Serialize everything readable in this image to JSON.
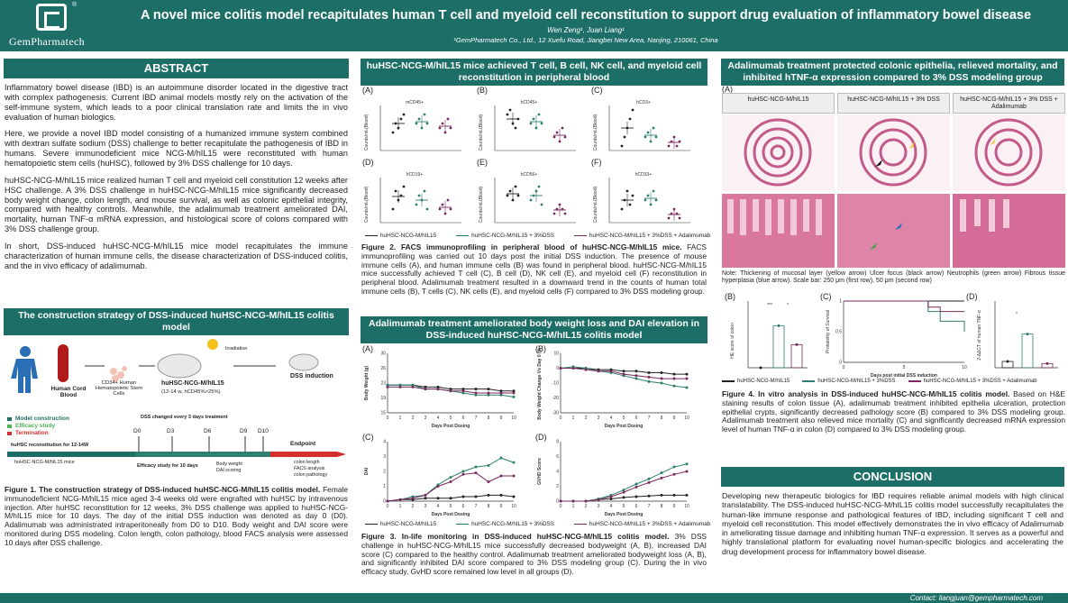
{
  "header": {
    "logo": "GemPharmatech",
    "reg": "®",
    "title": "A novel mice colitis model recapitulates human T cell and myeloid cell reconstitution to support drug evaluation of inflammatory bowel disease",
    "authors": "Wen Zeng¹, Juan Liang¹",
    "affil": "¹GemPharmatech Co., Ltd., 12 Xuefu Road, Jiangbei New Area, Nanjing, 210061, China"
  },
  "abstract": {
    "heading": "ABSTRACT",
    "p1": "Inflammatory bowel disease (IBD) is an autoimmune disorder located in the digestive tract with complex pathogenesis. Current IBD animal models mostly rely on the activation of the self-immune system, which leads to a poor clinical translation rate and limits the in vivo evaluation of human biologics.",
    "p2": "Here, we provide a novel IBD model consisting of a humanized immune system combined with dextran sulfate sodium (DSS) challenge to better recapitulate the pathogenesis of IBD in humans. Severe immunodeficient mice NCG-M/hIL15 were reconstituted with human hematopoietic stem cells (huHSC), followed by 3% DSS challenge for 10 days.",
    "p3": "huHSC-NCG-M/hIL15 mice realized human T cell and myeloid cell constitution 12 weeks after HSC challenge. A 3% DSS challenge in huHSC-NCG-M/hIL15 mice significantly decreased body weight change, colon length, and mouse survival, as well as colonic epithelial integrity, compared with healthy controls. Meanwhile, the adalimumab treatment ameliorated DAI, mortality, human TNF-α mRNA expression, and histological score of colons compared with 3% DSS challenge group.",
    "p4": "In short, DSS-induced huHSC-NCG-M/hIL15 mice model recapitulates the immune characterization of human immune cells, the disease characterization of DSS-induced colitis, and the in vivo efficacy of adalimumab."
  },
  "strategy": {
    "heading": "The construction strategy of DSS-induced huHSC-NCG-M/hIL15 colitis model",
    "human": "Human Cord Blood",
    "cd34": "CD34+ Human Hematopoietic Stem Cells",
    "irradiation": "Irradiation",
    "mouse": "huHSC-NCG-M/hIL15",
    "mouse_sub": "(12-14 w, hCD45%>25%)",
    "dss": "DSS induction",
    "legend": [
      "Model construction",
      "Efficacy study",
      "Termination"
    ],
    "dss_change": "DSS changed every 3 days treatment",
    "days": [
      "D0",
      "D3",
      "D6",
      "D9",
      "D10"
    ],
    "endpoint": "Endpoint",
    "recon": "huHSC reconstitution for 12-14W",
    "mice": "huHSC-NCG-M/hIL15 mice",
    "efficacy": "Efficacy study for 10 days",
    "measures": [
      "Body weight",
      "DAI scoring"
    ],
    "endpoints": [
      "colon length",
      "FACS analysis",
      "colon pathology"
    ]
  },
  "fig1": {
    "title": "Figure 1. The construction strategy of DSS-induced huHSC-NCG-M/hIL15 colitis model.",
    "text": "Female immunodeficient NCG-M/hIL15 mice aged 3-4 weeks old were engrafted with huHSC by intravenous injection. After huHSC reconstitution for 12 weeks, 3% DSS challenge was applied to huHSC-NCG-M/hIL15 mice for 10 days. The day of the initial DSS induction was denoted as day 0 (D0). Adalimumab was administrated intraperitoneally from D0 to D10. Body weight and DAI score were monitored during DSS modeling. Colon length, colon pathology, blood FACS analysis were assessed 10 days after DSS challenge."
  },
  "fig2": {
    "heading": "huHSC-NCG-M/hIL15 mice achieved T cell, B cell, NK cell, and myeloid cell reconstitution in peripheral blood",
    "panels": [
      {
        "tag": "(A)",
        "title": "mCD45+",
        "yl": "Counts/mL(Blood)"
      },
      {
        "tag": "(B)",
        "title": "hCD45+",
        "yl": "Counts/mL(Blood)"
      },
      {
        "tag": "(C)",
        "title": "hCD3+",
        "yl": "Counts/mL(Blood)"
      },
      {
        "tag": "(D)",
        "title": "hCD19+",
        "yl": "Counts/mL(Blood)"
      },
      {
        "tag": "(E)",
        "title": "hCD56+",
        "yl": "Counts/mL(Blood)"
      },
      {
        "tag": "(F)",
        "title": "hCD33+",
        "yl": "Counts/mL(Blood)"
      }
    ],
    "legend": [
      "huHSC-NCG-M/hIL15",
      "huHSC-NCG-M/hIL15 + 3%DSS",
      "huHSC-NCG-M/hIL15 + 3%DSS + Adalimumab"
    ],
    "title": "Figure 2. FACS immunoprofiling in peripheral blood of huHSC-NCG-M/hIL15 mice.",
    "text": "FACS immunoprofiling was carried out 10 days post the initial DSS induction. The presence of mouse immune cells (A), and human immune cells (B) was found in peripheral blood. huHSC-NCG-M/hIL15 mice successfully achieved T cell (C), B cell (D), NK cell (E), and myeloid cell (F) reconstitution in peripheral blood. Adalimumab treatment resulted in a downward trend in the counts of human total immune cells (B), T cells (C), NK cells (E), and myeloid cells (F) compared to 3% DSS modeling group."
  },
  "fig3": {
    "heading": "Adalimumab treatment ameliorated body weight loss and DAI elevation in DSS-induced huHSC-NCG-M/hIL15 colitis model",
    "tags": [
      "(A)",
      "(B)",
      "(C)",
      "(D)"
    ],
    "xlabel": "Days Post Dosing",
    "ylabels": [
      "Body Weight (g)",
      "Body Weight Change Vs Day 0 (%)",
      "DAI",
      "GVHD Score"
    ],
    "legend": [
      "huHSC-NCG-M/hIL15",
      "huHSC-NCG-M/hIL15 + 3%DSS",
      "huHSC-NCG-M/hIL15 + 3%DSS + Adalimumab"
    ],
    "title": "Figure 3. In-life monitoring in DSS-induced huHSC-NCG-M/hIL15 colitis model.",
    "text": "3% DSS challenge in huHSC-NCG-M/hIL15 mice successfully decreased bodyweight (A, B), increased DAI score (C) compared to the healthy control. Adalimumab treatment ameliorated bodyweight loss (A, B), and significantly inhibited DAI score compared to 3% DSS modeling group (C). During the in vivo efficacy study, GvHD score remained low level in all groups (D)."
  },
  "fig4": {
    "heading": "Adalimumab treatment protected colonic epithelia, relieved mortality, and inhibited hTNF-α expression compared to 3% DSS modeling group",
    "tag_a": "(A)",
    "histo_labels": [
      "huHSC-NCG-M/hIL15",
      "huHSC-NCG-M/hIL15 + 3% DSS",
      "huHSC-NCG-M/hIL15 + 3% DSS + Adalimumab"
    ],
    "note": "Note: Thickening of mucosal layer (yellow arrow) Ulcer focus (black arrow) Neutrophils (green arrow) Fibrous tissue hyperplasia (blue arrow). Scale bar: 250 μm (first row), 50 μm (second row)",
    "tags": [
      "(B)",
      "(C)",
      "(D)"
    ],
    "yl_b": "HE score of colon",
    "yl_c": "Probability of Survival",
    "xl_c": "Days post initial DSS induction",
    "yl_d": "2-ΔΔCT of human TNF-α",
    "sig_b": "***",
    "sig_b2": "*",
    "sig_d": "*",
    "legend": [
      "huHSC-NCG-M/hIL15",
      "huHSC-NCG-M/hIL15 + 3%DSS",
      "huHSC-NCG-M/hIL15 + 3%DSS + Adalimumab"
    ],
    "title": "Figure 4. In vitro analysis in DSS-induced huHSC-NCG-M/hIL15 colitis model.",
    "text": "Based on H&E staining results of colon tissue (A), adalimumab treatment inhibited epithelia ulceration, protection epithelial crypts, significantly decreased pathology score (B) compared to 3% DSS modeling group. Adalimumab treatment also relieved mice mortality (C) and significantly decreased mRNA expression level of human TNF-α in colon (D) compared to 3% DSS modeling group."
  },
  "conclusion": {
    "heading": "CONCLUSION",
    "text": "Developing new therapeutic biologics for IBD requires reliable animal models with high clinical translatability. The DSS-induced huHSC-NCG-M/hIL15 colitis model successfully recapitulates the human-like immune response and pathological features of IBD, including significant T cell and myeloid cell reconstitution. This model effectively demonstrates the in vivo efficacy of Adalimumab in ameliorating tissue damage and inhibiting human TNF-α expression. It serves as a powerful and highly translational platform for evaluating novel human-specific biologics and accelerating the drug development process for inflammatory bowel disease."
  },
  "footer": {
    "contact": "Contact: liangjuan@gempharmatech.com"
  },
  "colors": {
    "teal": "#1d6e66",
    "black": "#222222",
    "green": "#2e7f6e",
    "purple": "#7a2a5e"
  },
  "chart_data": [
    {
      "type": "line",
      "id": "fig3A",
      "xlabel": "Days Post Dosing",
      "ylabel": "Body Weight (g)",
      "xlim": [
        0,
        10
      ],
      "ylim": [
        15,
        30
      ],
      "x": [
        0,
        1,
        2,
        3,
        4,
        5,
        6,
        7,
        8,
        9,
        10
      ],
      "series": [
        {
          "name": "huHSC-NCG-M/hIL15",
          "values": [
            22,
            22,
            22,
            21.5,
            21.5,
            21,
            21,
            21,
            21,
            20.5,
            20.5
          ]
        },
        {
          "name": "huHSC-NCG-M/hIL15 + 3%DSS",
          "values": [
            22,
            22,
            22,
            21,
            21,
            20.5,
            20,
            19.5,
            19.5,
            19.5,
            19
          ]
        },
        {
          "name": "huHSC-NCG-M/hIL15 + 3%DSS + Adalimumab",
          "values": [
            21.5,
            21.5,
            21.5,
            21,
            21,
            20.5,
            20.5,
            20,
            20,
            20,
            20
          ]
        }
      ]
    },
    {
      "type": "line",
      "id": "fig3B",
      "xlabel": "Days Post Dosing",
      "ylabel": "Body Weight Change Vs Day 0 (%)",
      "xlim": [
        0,
        10
      ],
      "ylim": [
        -30,
        10
      ],
      "x": [
        0,
        1,
        2,
        3,
        4,
        5,
        6,
        7,
        8,
        9,
        10
      ],
      "series": [
        {
          "name": "huHSC-NCG-M/hIL15",
          "values": [
            0,
            0,
            0,
            -1,
            -1,
            -2,
            -2,
            -3,
            -3,
            -4,
            -4
          ]
        },
        {
          "name": "huHSC-NCG-M/hIL15 + 3%DSS",
          "values": [
            0,
            1,
            0,
            -2,
            -3,
            -5,
            -7,
            -9,
            -10,
            -12,
            -13
          ]
        },
        {
          "name": "huHSC-NCG-M/hIL15 + 3%DSS + Adalimumab",
          "values": [
            0,
            0,
            -1,
            -2,
            -2,
            -4,
            -5,
            -6,
            -7,
            -7,
            -7
          ]
        }
      ]
    },
    {
      "type": "line",
      "id": "fig3C",
      "xlabel": "Days Post Dosing",
      "ylabel": "DAI",
      "xlim": [
        0,
        10
      ],
      "ylim": [
        0,
        4
      ],
      "x": [
        0,
        1,
        2,
        3,
        4,
        5,
        6,
        7,
        8,
        9,
        10
      ],
      "series": [
        {
          "name": "huHSC-NCG-M/hIL15",
          "values": [
            0,
            0.1,
            0.1,
            0.2,
            0.2,
            0.2,
            0.3,
            0.3,
            0.4,
            0.4,
            0.3
          ]
        },
        {
          "name": "huHSC-NCG-M/hIL15 + 3%DSS",
          "values": [
            0,
            0.1,
            0.3,
            0.4,
            1.1,
            1.6,
            2.0,
            2.3,
            2.4,
            2.9,
            2.6
          ]
        },
        {
          "name": "huHSC-NCG-M/hIL15 + 3%DSS + Adalimumab",
          "values": [
            0,
            0.1,
            0.2,
            0.4,
            1.0,
            1.3,
            1.8,
            1.9,
            1.3,
            1.7,
            1.7
          ]
        }
      ]
    },
    {
      "type": "line",
      "id": "fig3D",
      "xlabel": "Days Post Dosing",
      "ylabel": "GVHD Score",
      "xlim": [
        0,
        10
      ],
      "ylim": [
        0,
        8
      ],
      "x": [
        0,
        1,
        2,
        3,
        4,
        5,
        6,
        7,
        8,
        9,
        10
      ],
      "series": [
        {
          "name": "huHSC-NCG-M/hIL15",
          "values": [
            0,
            0,
            0,
            0.2,
            0.3,
            0.5,
            0.6,
            0.7,
            0.8,
            0.8,
            0.8
          ]
        },
        {
          "name": "huHSC-NCG-M/hIL15 + 3%DSS",
          "values": [
            0,
            0,
            0,
            0.3,
            0.8,
            1.5,
            2.3,
            3.0,
            3.8,
            4.6,
            5.0
          ]
        },
        {
          "name": "huHSC-NCG-M/hIL15 + 3%DSS + Adalimumab",
          "values": [
            0,
            0,
            0,
            0.2,
            0.6,
            1.2,
            1.9,
            2.5,
            3.1,
            3.6,
            4.0
          ]
        }
      ]
    },
    {
      "type": "scatter",
      "id": "fig4B",
      "ylabel": "HE score of colon",
      "ylim": [
        0,
        15
      ],
      "groups": [
        "huHSC-NCG-M/hIL15",
        "huHSC-NCG-M/hIL15 + 3%DSS",
        "huHSC-NCG-M/hIL15 + 3%DSS + Adalimumab"
      ],
      "means": [
        0,
        10,
        5.5
      ]
    },
    {
      "type": "line",
      "id": "fig4C",
      "xlabel": "Days post initial DSS induction",
      "ylabel": "Probability of Survival",
      "xlim": [
        0,
        10
      ],
      "ylim": [
        0,
        1
      ],
      "x": [
        0,
        7,
        8,
        10
      ],
      "series": [
        {
          "name": "huHSC-NCG-M/hIL15",
          "values": [
            1,
            1,
            1,
            1
          ]
        },
        {
          "name": "huHSC-NCG-M/hIL15 + 3%DSS",
          "values": [
            1,
            0.83,
            0.67,
            0.5
          ]
        },
        {
          "name": "huHSC-NCG-M/hIL15 + 3%DSS + Adalimumab",
          "values": [
            1,
            0.9,
            0.83,
            0.83
          ]
        }
      ]
    },
    {
      "type": "scatter",
      "id": "fig4D",
      "ylabel": "2-ΔΔCT of human TNF-α",
      "ylim": [
        0,
        15
      ],
      "groups": [
        "huHSC-NCG-M/hIL15",
        "huHSC-NCG-M/hIL15 + 3%DSS",
        "huHSC-NCG-M/hIL15 + 3%DSS + Adalimumab"
      ],
      "means": [
        1.5,
        8,
        1
      ]
    }
  ]
}
